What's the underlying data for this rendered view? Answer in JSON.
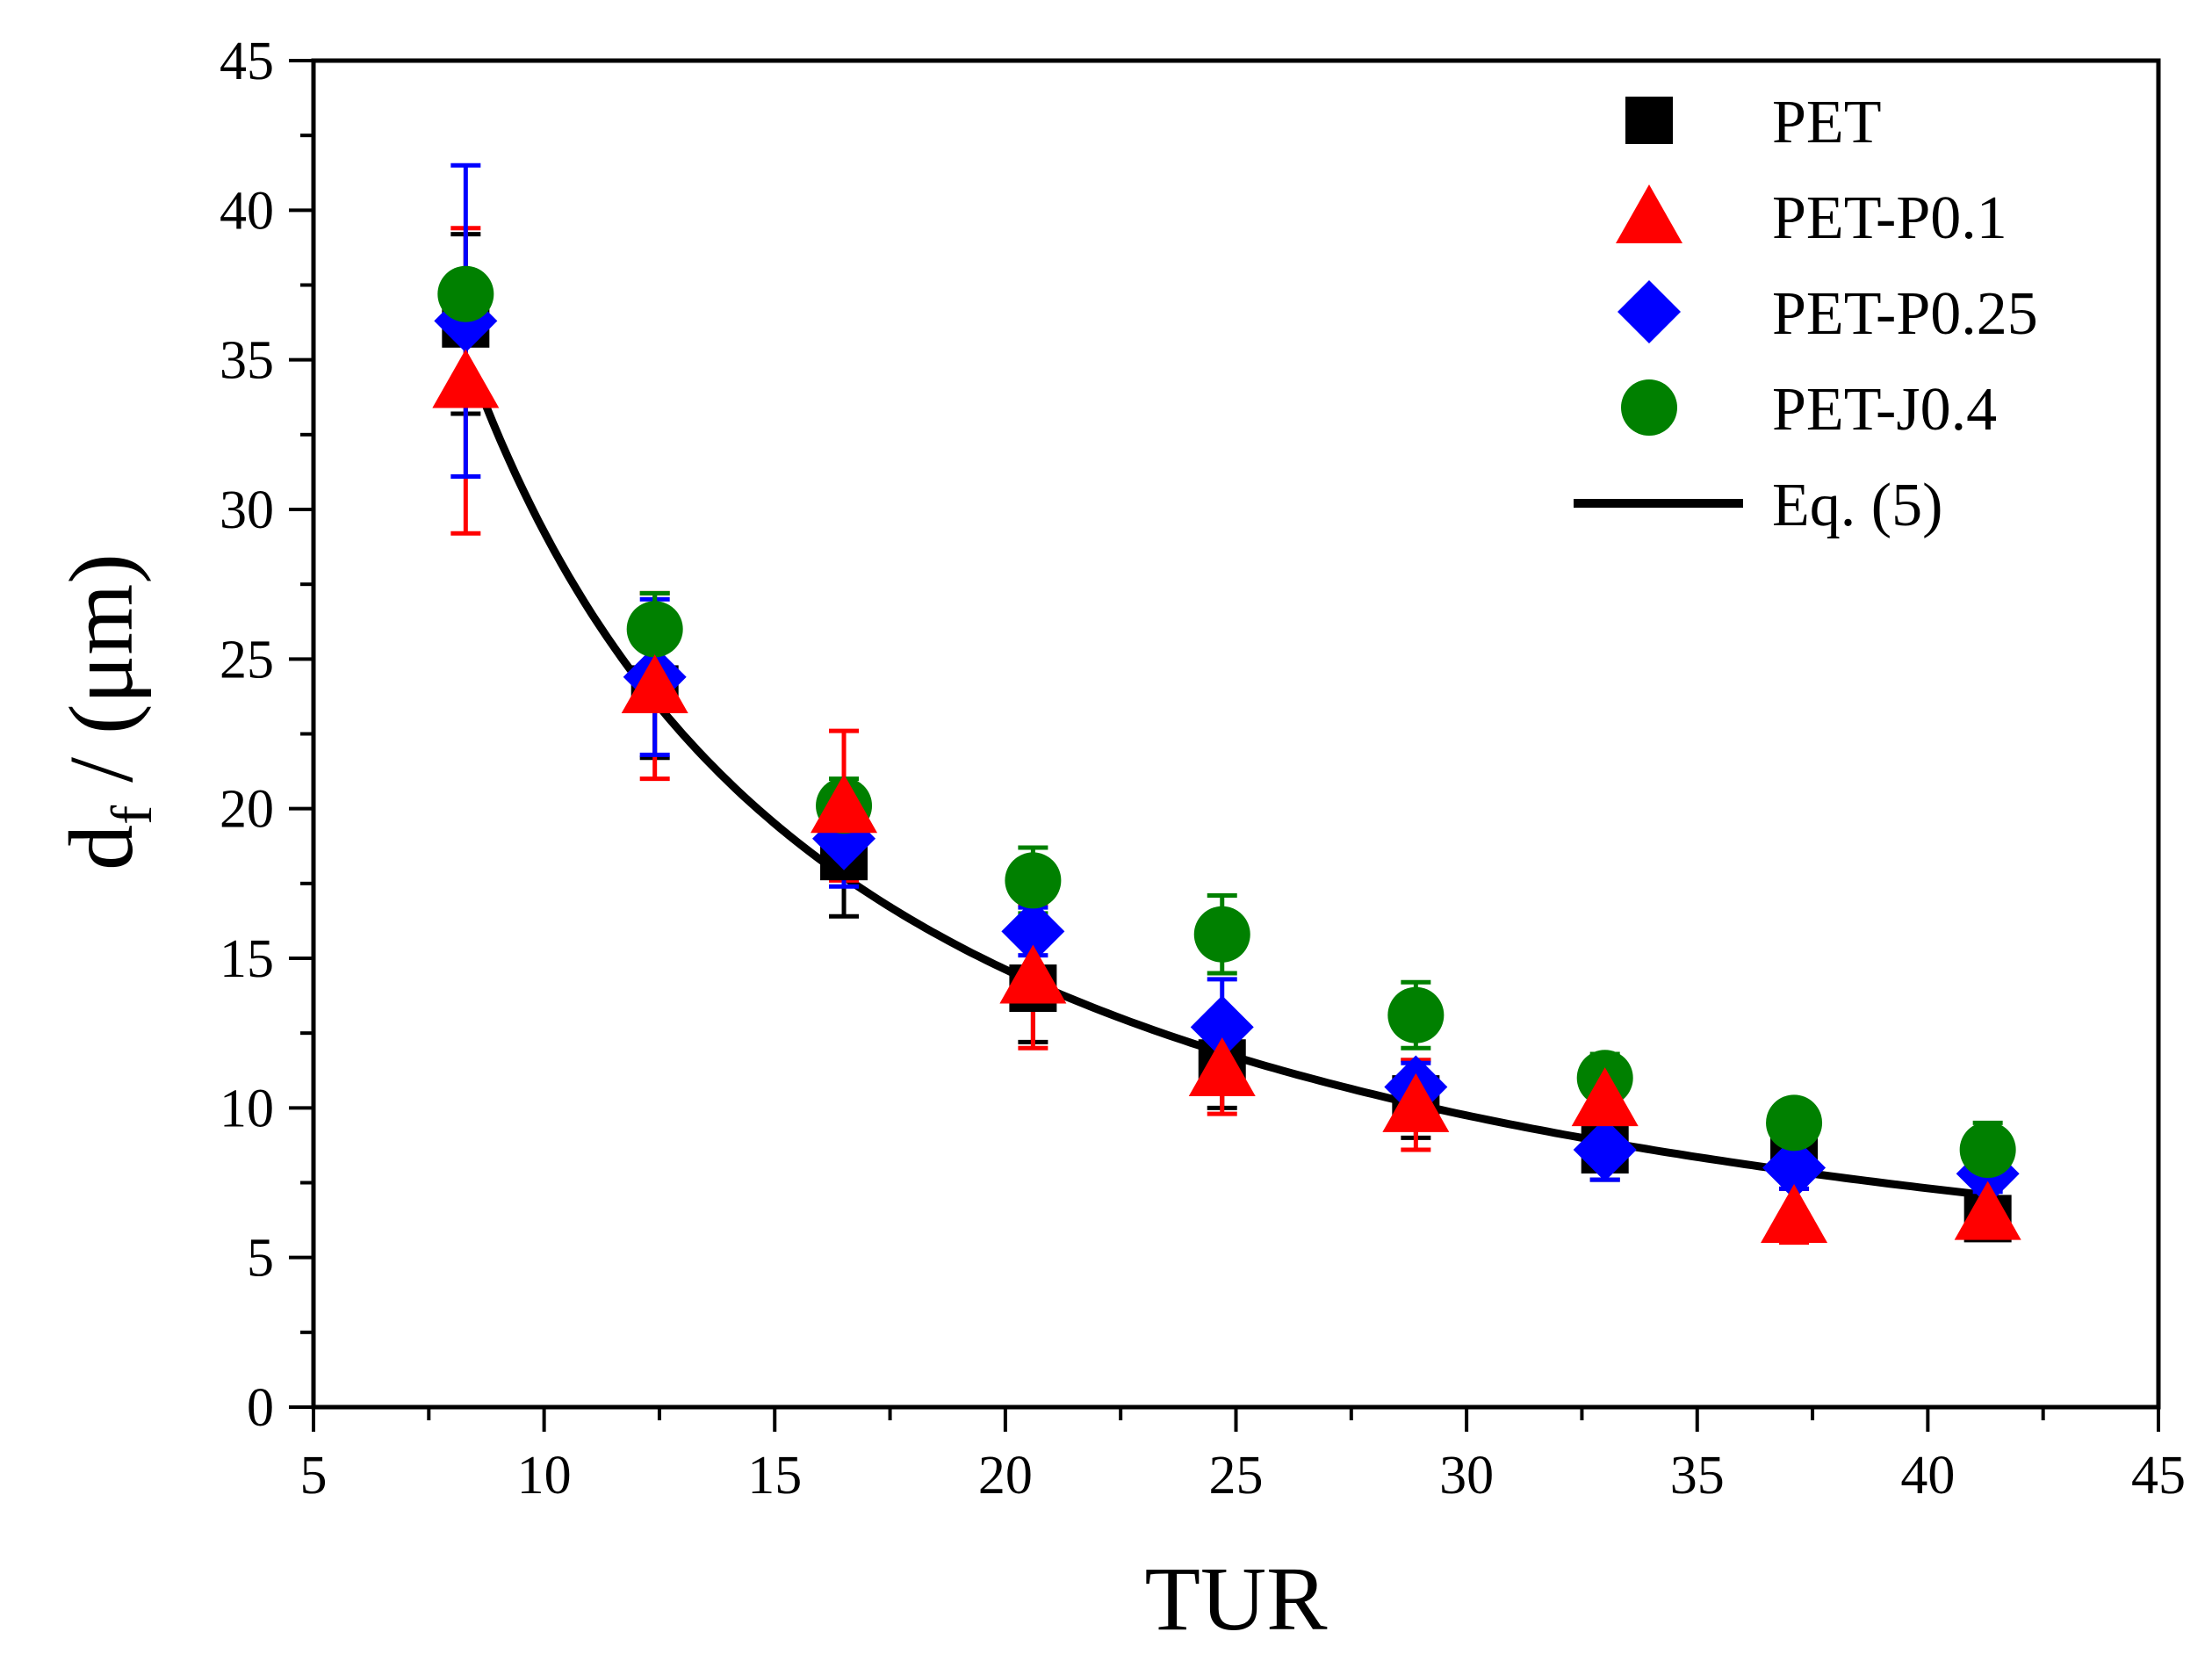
{
  "chart_data": {
    "type": "scatter",
    "title": "",
    "xlabel": "TUR",
    "ylabel_main": "d",
    "ylabel_sub": "f",
    "ylabel_rest": " / (μm)",
    "xlim": [
      5,
      45
    ],
    "ylim": [
      0,
      45
    ],
    "x_ticks": [
      5,
      10,
      15,
      20,
      25,
      30,
      35,
      40,
      45
    ],
    "y_ticks": [
      0,
      5,
      10,
      15,
      20,
      25,
      30,
      35,
      40,
      45
    ],
    "x_ticks_text": [
      "5",
      "10",
      "15",
      "20",
      "25",
      "30",
      "35",
      "40",
      "45"
    ],
    "y_ticks_text": [
      "0",
      "5",
      "10",
      "15",
      "20",
      "25",
      "30",
      "35",
      "40",
      "45"
    ],
    "legend_position": "top-right",
    "series": [
      {
        "name": "PET",
        "marker": "square",
        "color": "#000000",
        "x": [
          8.3,
          12.4,
          16.5,
          20.6,
          24.7,
          28.9,
          33.0,
          37.1,
          41.3
        ],
        "y": [
          36.2,
          24.0,
          18.4,
          14.0,
          11.5,
          10.3,
          8.6,
          9.0,
          6.3
        ],
        "err": [
          3.0,
          2.3,
          2.0,
          1.8,
          1.5,
          1.3,
          1.0,
          1.2,
          0.6
        ]
      },
      {
        "name": "PET-P0.1",
        "marker": "triangle",
        "color": "#ff0000",
        "x": [
          8.3,
          12.4,
          16.5,
          20.6,
          24.7,
          28.9,
          33.0,
          37.1,
          41.3
        ],
        "y": [
          34.3,
          24.1,
          20.1,
          14.4,
          11.3,
          10.1,
          10.3,
          6.4,
          6.5
        ],
        "err": [
          5.1,
          3.1,
          2.5,
          2.4,
          1.5,
          1.5,
          1.3,
          0.9,
          0.8
        ]
      },
      {
        "name": "PET-P0.25",
        "marker": "diamond",
        "color": "#0000ff",
        "x": [
          8.3,
          12.4,
          16.5,
          20.6,
          24.7,
          28.9,
          33.0,
          37.1,
          41.3
        ],
        "y": [
          36.3,
          24.4,
          19.0,
          15.9,
          12.7,
          10.7,
          8.6,
          8.0,
          7.8
        ],
        "err": [
          5.2,
          2.6,
          1.6,
          0.8,
          1.6,
          0.8,
          1.0,
          0.7,
          0.6
        ]
      },
      {
        "name": "PET-J0.4",
        "marker": "circle",
        "color": "#008000",
        "x": [
          8.3,
          12.4,
          16.5,
          20.6,
          24.7,
          28.9,
          33.0,
          37.1,
          41.3
        ],
        "y": [
          37.2,
          26.0,
          20.1,
          17.6,
          15.8,
          13.1,
          11.0,
          9.5,
          8.6
        ],
        "err": [
          0,
          1.2,
          0.9,
          1.1,
          1.3,
          1.1,
          0.8,
          0.7,
          0.9
        ]
      }
    ],
    "fit": {
      "name": "Eq. (5)",
      "color": "#000000",
      "model": "y = a / x",
      "a": 292.5,
      "x_range": [
        8.4,
        41.3
      ]
    }
  }
}
